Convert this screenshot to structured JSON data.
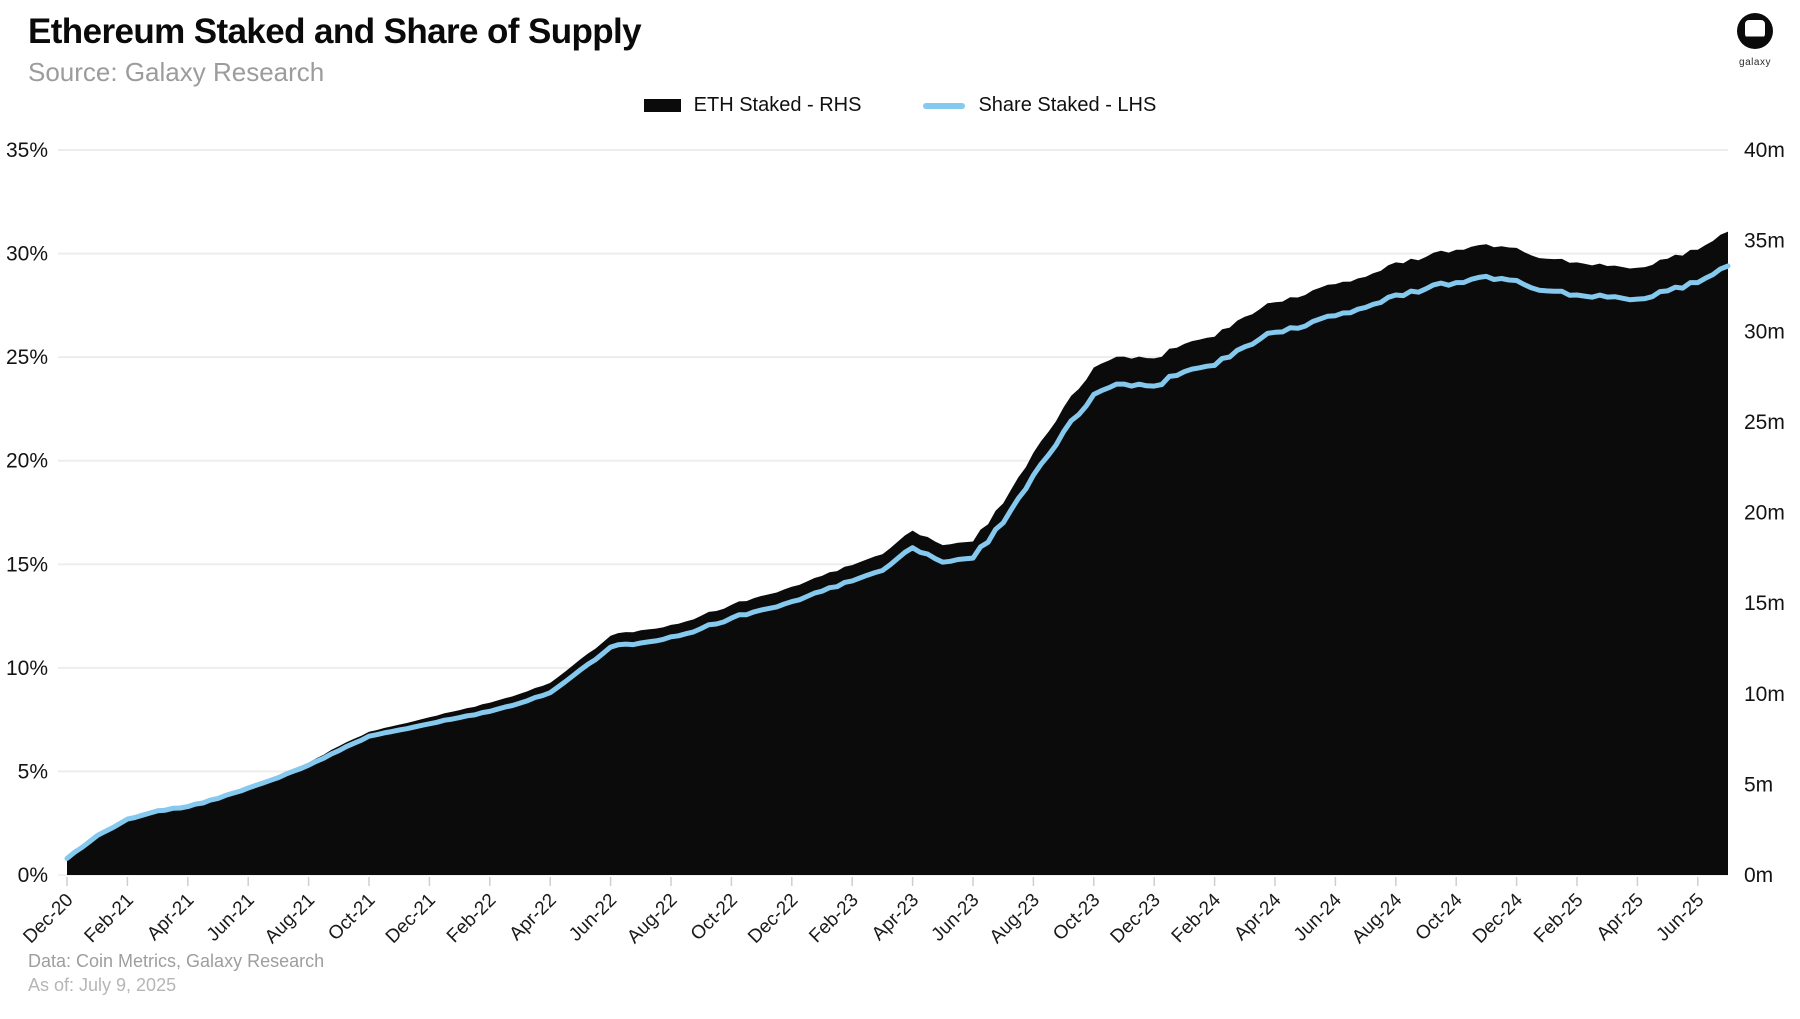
{
  "header": {
    "title": "Ethereum Staked and Share of Supply",
    "subtitle": "Source: Galaxy Research"
  },
  "branding": {
    "logo_label": "galaxy"
  },
  "legend": {
    "items": [
      {
        "label": "ETH Staked - RHS",
        "swatch": "bar",
        "color": "#0b0b0b"
      },
      {
        "label": "Share Staked - LHS",
        "swatch": "line",
        "color": "#85c9ee"
      }
    ]
  },
  "footer": {
    "line1": "Data: Coin Metrics, Galaxy Research",
    "line2": "As of: July 9, 2025"
  },
  "colors": {
    "area_black": "#0b0b0b",
    "line_blue": "#85c9ee",
    "gridline": "#ededed",
    "tick": "#cfcfcf",
    "axis_text": "#131313",
    "x_tick_text": "#1a1a1a"
  },
  "chart_data": {
    "type": "area",
    "title": "Ethereum Staked and Share of Supply",
    "grid": true,
    "legend_position": "top-center",
    "x": [
      "Dec-20",
      "Jan-21",
      "Feb-21",
      "Mar-21",
      "Apr-21",
      "May-21",
      "Jun-21",
      "Jul-21",
      "Aug-21",
      "Sep-21",
      "Oct-21",
      "Nov-21",
      "Dec-21",
      "Jan-22",
      "Feb-22",
      "Mar-22",
      "Apr-22",
      "May-22",
      "Jun-22",
      "Jul-22",
      "Aug-22",
      "Sep-22",
      "Oct-22",
      "Nov-22",
      "Dec-22",
      "Jan-23",
      "Feb-23",
      "Mar-23",
      "Apr-23",
      "May-23",
      "Jun-23",
      "Jul-23",
      "Aug-23",
      "Sep-23",
      "Oct-23",
      "Nov-23",
      "Dec-23",
      "Jan-24",
      "Feb-24",
      "Mar-24",
      "Apr-24",
      "May-24",
      "Jun-24",
      "Jul-24",
      "Aug-24",
      "Sep-24",
      "Oct-24",
      "Nov-24",
      "Dec-24",
      "Jan-25",
      "Feb-25",
      "Mar-25",
      "Apr-25",
      "May-25",
      "Jun-25",
      "Jul-25"
    ],
    "x_tick_labels": [
      "Dec-20",
      "Feb-21",
      "Apr-21",
      "Jun-21",
      "Aug-21",
      "Oct-21",
      "Dec-21",
      "Feb-22",
      "Apr-22",
      "Jun-22",
      "Aug-22",
      "Oct-22",
      "Dec-22",
      "Feb-23",
      "Apr-23",
      "Jun-23",
      "Aug-23",
      "Oct-23",
      "Dec-23",
      "Feb-24",
      "Apr-24",
      "Jun-24",
      "Aug-24",
      "Oct-24",
      "Dec-24",
      "Feb-25",
      "Apr-25",
      "Jun-25"
    ],
    "series": [
      {
        "name": "ETH Staked - RHS",
        "type": "area",
        "axis": "right",
        "unit": "million ETH",
        "color": "#0b0b0b",
        "values": [
          0.9,
          2.2,
          3.1,
          3.6,
          3.8,
          4.3,
          4.9,
          5.5,
          6.2,
          7.1,
          7.9,
          8.3,
          8.7,
          9.1,
          9.5,
          10.0,
          10.6,
          11.9,
          13.2,
          13.5,
          13.8,
          14.3,
          14.9,
          15.4,
          15.9,
          16.5,
          17.1,
          17.7,
          19.0,
          18.2,
          18.4,
          20.5,
          23.3,
          25.8,
          28.0,
          28.6,
          28.5,
          29.3,
          29.7,
          30.8,
          31.6,
          32.0,
          32.6,
          33.0,
          33.8,
          34.1,
          34.5,
          34.8,
          34.6,
          34.0,
          33.8,
          33.6,
          33.5,
          34.0,
          34.5,
          35.5
        ]
      },
      {
        "name": "Share Staked - LHS",
        "type": "line",
        "axis": "left",
        "unit": "%",
        "color": "#85c9ee",
        "values": [
          0.8,
          1.9,
          2.7,
          3.1,
          3.3,
          3.7,
          4.2,
          4.7,
          5.3,
          6.0,
          6.7,
          7.0,
          7.3,
          7.6,
          7.9,
          8.3,
          8.8,
          9.9,
          11.0,
          11.2,
          11.5,
          11.9,
          12.4,
          12.8,
          13.2,
          13.7,
          14.2,
          14.7,
          15.8,
          15.1,
          15.3,
          17.0,
          19.3,
          21.4,
          23.2,
          23.7,
          23.6,
          24.3,
          24.6,
          25.5,
          26.2,
          26.5,
          27.0,
          27.4,
          28.0,
          28.3,
          28.6,
          28.9,
          28.7,
          28.2,
          28.0,
          27.9,
          27.8,
          28.2,
          28.6,
          29.4
        ]
      }
    ],
    "left_axis": {
      "unit": "%",
      "min": 0,
      "max": 35,
      "step": 5,
      "labels": [
        "0%",
        "5%",
        "10%",
        "15%",
        "20%",
        "25%",
        "30%",
        "35%"
      ]
    },
    "right_axis": {
      "unit": "m",
      "min": 0,
      "max": 40,
      "step": 5,
      "labels": [
        "0m",
        "5m",
        "10m",
        "15m",
        "20m",
        "25m",
        "30m",
        "35m",
        "40m"
      ]
    }
  }
}
